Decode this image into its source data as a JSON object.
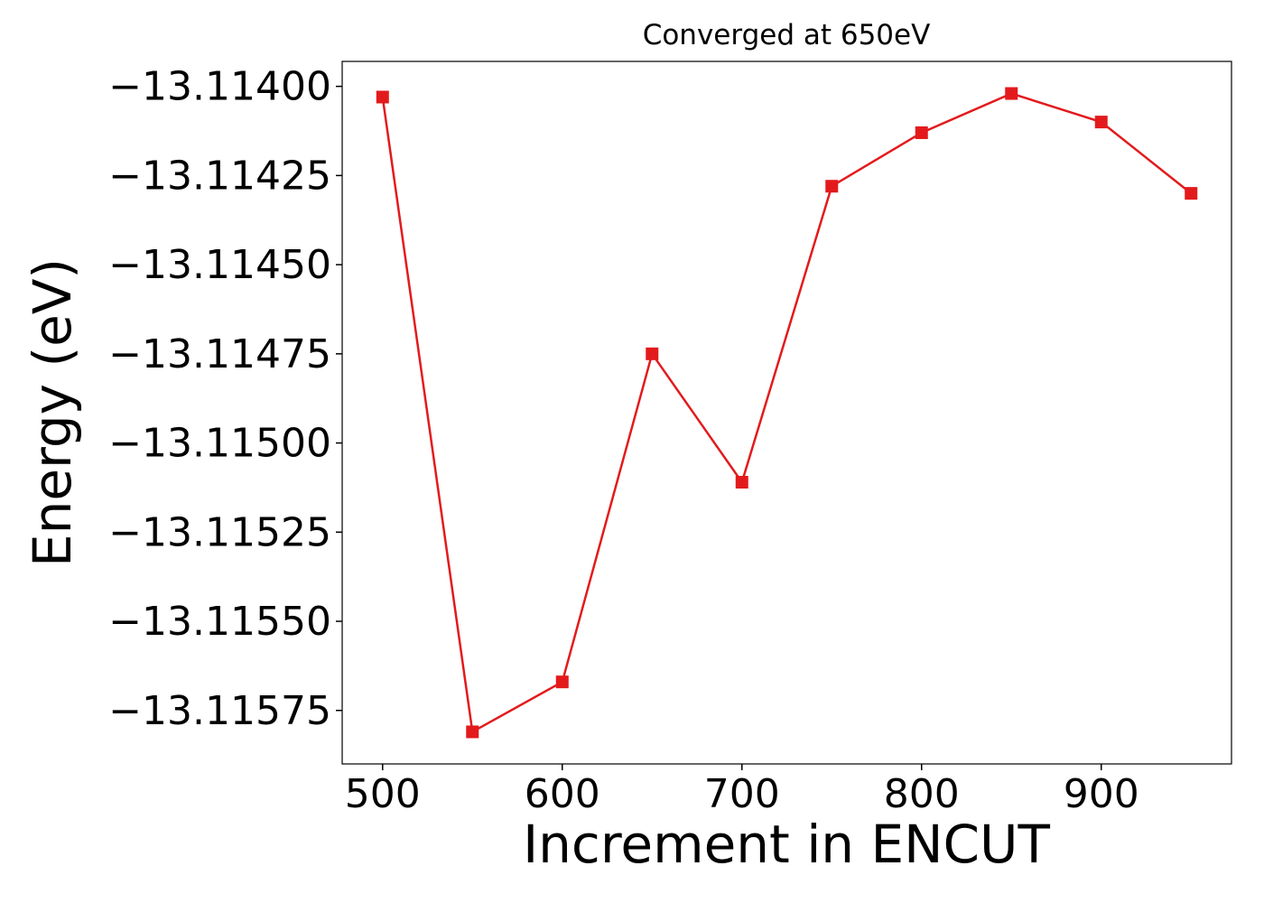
{
  "chart_data": {
    "type": "line",
    "title": "Converged at 650eV",
    "xlabel": "Increment in ENCUT",
    "ylabel": "Energy (eV)",
    "x": [
      500,
      550,
      600,
      650,
      700,
      750,
      800,
      850,
      900,
      950
    ],
    "series": [
      {
        "color": "#e31a1c",
        "values": [
          -13.11403,
          -13.11581,
          -13.11567,
          -13.11475,
          -13.11511,
          -13.11428,
          -13.11413,
          -13.11402,
          -13.1141,
          -13.1143
        ]
      }
    ],
    "xlim": [
      477.5,
      972.5
    ],
    "ylim": [
      -13.1159,
      -13.11393
    ],
    "xticks": [
      500,
      600,
      700,
      800,
      900
    ],
    "yticks": [
      {
        "value": -13.114,
        "label": "−13.11400"
      },
      {
        "value": -13.11425,
        "label": "−13.11425"
      },
      {
        "value": -13.1145,
        "label": "−13.11450"
      },
      {
        "value": -13.11475,
        "label": "−13.11475"
      },
      {
        "value": -13.115,
        "label": "−13.11500"
      },
      {
        "value": -13.11525,
        "label": "−13.11525"
      },
      {
        "value": -13.1155,
        "label": "−13.11550"
      },
      {
        "value": -13.11575,
        "label": "−13.11575"
      }
    ],
    "grid": false
  }
}
